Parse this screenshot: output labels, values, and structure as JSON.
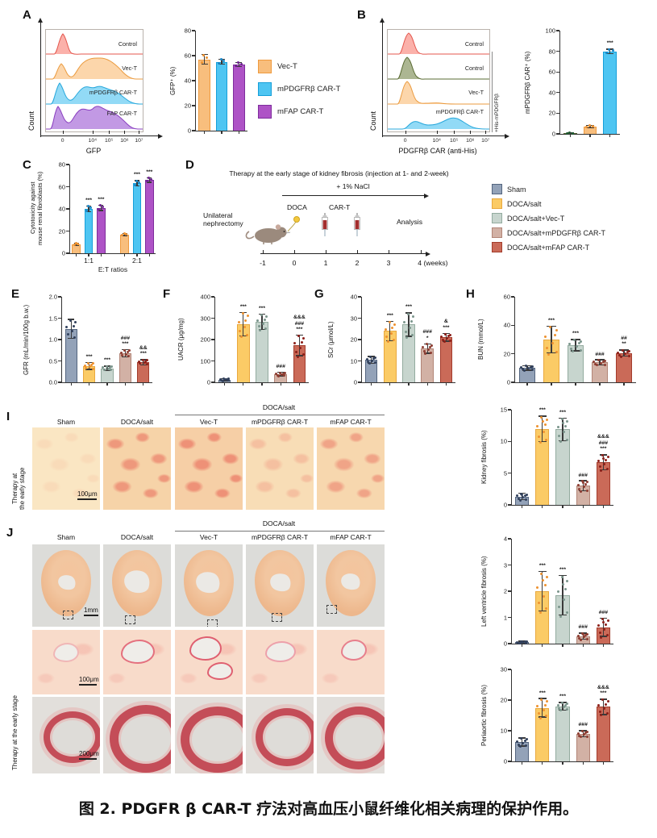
{
  "caption": "图 2. PDGFR β CAR-T 疗法对高血压小鼠纤维化相关病理的保护作用。",
  "palette": {
    "sham": {
      "fill": "#93a2b8",
      "edge": "#54657f",
      "dot": "#31405c"
    },
    "doca": {
      "fill": "#fbcb66",
      "edge": "#e9a83e",
      "dot": "#ee9230"
    },
    "vect": {
      "fill": "#c7d5ce",
      "edge": "#93ab9f",
      "dot": "#7b958c"
    },
    "pdgfrb": {
      "fill": "#d2b1a5",
      "edge": "#b28577",
      "dot": "#8e3d32"
    },
    "fap": {
      "fill": "#ca6a58",
      "edge": "#a33c2c",
      "dot": "#8c1f19"
    },
    "orange": {
      "fill": "#f8be7d",
      "edge": "#ef9a3e",
      "dot": "#ee9230"
    },
    "blue": {
      "fill": "#4ec5f2",
      "edge": "#169fd9",
      "dot": "#1787c9"
    },
    "purple": {
      "fill": "#ae53c6",
      "edge": "#7e2d9c",
      "dot": "#6d2391"
    },
    "green": {
      "fill": "#76864c",
      "edge": "#4e5f2c",
      "dot": "#1e5c30"
    }
  },
  "flow_colors": {
    "red": "#f87d72",
    "orange": "#fac07e",
    "blue": "#57c6f1",
    "purple": "#a263d6",
    "green": "#75854a"
  },
  "panels": {
    "A": {
      "label": "A",
      "flow": {
        "ylabel": "Count",
        "xlabel": "GFP",
        "xticks": [
          "0",
          "10⁴",
          "10⁵",
          "10⁶",
          "10⁷"
        ],
        "ridges": [
          "Control",
          "Vec-T",
          "mPDGFRβ CAR-T",
          "FAP CAR-T"
        ]
      },
      "legend": [
        {
          "label": "Vec-T",
          "key": "orange"
        },
        {
          "label": "mPDGFRβ CAR-T",
          "key": "blue"
        },
        {
          "label": "mFAP CAR-T",
          "key": "purple"
        }
      ]
    },
    "B": {
      "label": "B",
      "flow": {
        "ylabel": "Count",
        "xlabel": "PDGFRβ CAR (anti-His)",
        "xticks": [
          "0",
          "10⁴",
          "10⁵",
          "10⁶",
          "10⁷"
        ],
        "ridges": [
          "Control",
          "Control",
          "Vec-T",
          "mPDGFRβ CAR-T"
        ],
        "side_label": "+His-mPDGFRβ"
      }
    },
    "C": {
      "label": "C"
    },
    "D": {
      "label": "D",
      "title": "Therapy at the early stage of kidney fibrosis (injection at 1- and 2-week)",
      "nacl": "+ 1% NaCl",
      "doca": "DOCA",
      "cart": "CAR-T",
      "analysis": "Analysis",
      "surgery": "Unilateral\nnephrectomy",
      "weeks": [
        "-1",
        "0",
        "1",
        "2",
        "3",
        "4 (weeks)"
      ],
      "legend": [
        {
          "label": "Sham",
          "key": "sham"
        },
        {
          "label": "DOCA/salt",
          "key": "doca"
        },
        {
          "label": "DOCA/salt+Vec-T",
          "key": "vect"
        },
        {
          "label": "DOCA/salt+mPDGFRβ CAR-T",
          "key": "pdgfrb"
        },
        {
          "label": "DOCA/salt+mFAP CAR-T",
          "key": "fap"
        }
      ]
    },
    "E": {
      "label": "E"
    },
    "F": {
      "label": "F"
    },
    "G": {
      "label": "G"
    },
    "H": {
      "label": "H"
    },
    "I": {
      "label": "I",
      "group_header": "DOCA/salt",
      "columns": [
        "Sham",
        "DOCA/salt",
        "Vec-T",
        "mPDGFRβ CAR-T",
        "mFAP CAR-T"
      ],
      "side_label": "Therapy at\nthe early stage",
      "scale_bar": "100μm"
    },
    "J": {
      "label": "J",
      "group_header": "DOCA/salt",
      "columns": [
        "Sham",
        "DOCA/salt",
        "Vec-T",
        "mPDGFRβ CAR-T",
        "mFAP CAR-T"
      ],
      "side_label": "Therapy at the early stage",
      "scale_bars": [
        "1mm",
        "100μm",
        "200μm"
      ]
    }
  },
  "chart_data": [
    {
      "id": "gfp_positive",
      "type": "bar",
      "ylabel": "GFP⁺ (%)",
      "ylim": [
        0,
        80
      ],
      "yticks": [
        "0",
        "20",
        "40",
        "60",
        "80"
      ],
      "categories": [
        "Vec-T",
        "mPDGFRβ CAR-T",
        "mFAP CAR-T"
      ],
      "n_dots": 3,
      "bars": [
        {
          "key": "orange",
          "v": 57,
          "err": 4,
          "sig": []
        },
        {
          "key": "blue",
          "v": 55,
          "err": 2,
          "sig": []
        },
        {
          "key": "purple",
          "v": 53,
          "err": 1.5,
          "sig": []
        }
      ]
    },
    {
      "id": "car_positive",
      "type": "bar",
      "ylabel": "mPDGFRβ CAR⁺ (%)",
      "ylim": [
        0,
        100
      ],
      "yticks": [
        "0",
        "20",
        "40",
        "60",
        "80",
        "100"
      ],
      "categories": [
        "Control",
        "Vec-T",
        "mPDGFRβ CAR-T"
      ],
      "n_dots": 3,
      "bars": [
        {
          "key": "green",
          "v": 0.5,
          "err": 0.4,
          "sig": []
        },
        {
          "key": "orange",
          "v": 7,
          "err": 1,
          "sig": []
        },
        {
          "key": "blue",
          "v": 80,
          "err": 2,
          "sig": [
            "***"
          ]
        }
      ]
    },
    {
      "id": "cytotoxicity",
      "type": "bar",
      "ylabel": "Cytotoxicity against\nmouse renal fibroblasts (%)",
      "ylim": [
        0,
        80
      ],
      "yticks": [
        "0",
        "20",
        "40",
        "60",
        "80"
      ],
      "xlabel": "E:T ratios",
      "group_labels": [
        "1:1",
        "2:1"
      ],
      "gap_before": [
        3
      ],
      "n_dots": 3,
      "categories": [
        "Vec-T 1:1",
        "mPDGFRβ CAR-T 1:1",
        "mFAP CAR-T 1:1",
        "Vec-T 2:1",
        "mPDGFRβ CAR-T 2:1",
        "mFAP CAR-T 2:1"
      ],
      "bars": [
        {
          "key": "orange",
          "v": 8,
          "err": 1,
          "sig": []
        },
        {
          "key": "blue",
          "v": 40,
          "err": 2.5,
          "sig": [
            "***"
          ]
        },
        {
          "key": "purple",
          "v": 41,
          "err": 2.5,
          "sig": [
            "***"
          ]
        },
        {
          "key": "orange",
          "v": 17,
          "err": 1,
          "sig": []
        },
        {
          "key": "blue",
          "v": 63,
          "err": 2.5,
          "sig": [
            "***"
          ]
        },
        {
          "key": "purple",
          "v": 66,
          "err": 2,
          "sig": [
            "***"
          ]
        }
      ]
    },
    {
      "id": "gfr",
      "type": "bar",
      "ylabel": "GFR (mL/min/100g b.w.)",
      "ylim": [
        0,
        2
      ],
      "yticks": [
        "0.0",
        "0.5",
        "1.0",
        "1.5",
        "2.0"
      ],
      "categories": [
        "Sham",
        "DOCA/salt",
        "DOCA/salt+Vec-T",
        "DOCA/salt+mPDGFRβ CAR-T",
        "DOCA/salt+mFAP CAR-T"
      ],
      "n_dots": 7,
      "bars": [
        {
          "key": "sham",
          "v": 1.25,
          "err": 0.22,
          "sig": []
        },
        {
          "key": "doca",
          "v": 0.38,
          "err": 0.08,
          "sig": [
            "***"
          ]
        },
        {
          "key": "vect",
          "v": 0.33,
          "err": 0.05,
          "sig": [
            "***"
          ]
        },
        {
          "key": "pdgfrb",
          "v": 0.68,
          "err": 0.08,
          "sig": [
            "###",
            "***"
          ]
        },
        {
          "key": "fap",
          "v": 0.47,
          "err": 0.06,
          "sig": [
            "&&",
            "***"
          ]
        }
      ]
    },
    {
      "id": "uacr",
      "type": "bar",
      "ylabel": "UACR (μg/mg)",
      "ylim": [
        0,
        400
      ],
      "yticks": [
        "0",
        "100",
        "200",
        "300",
        "400"
      ],
      "categories": [
        "Sham",
        "DOCA/salt",
        "DOCA/salt+Vec-T",
        "DOCA/salt+mPDGFRβ CAR-T",
        "DOCA/salt+mFAP CAR-T"
      ],
      "n_dots": 8,
      "bars": [
        {
          "key": "sham",
          "v": 13,
          "err": 5,
          "sig": []
        },
        {
          "key": "doca",
          "v": 272,
          "err": 55,
          "sig": [
            "***"
          ]
        },
        {
          "key": "vect",
          "v": 283,
          "err": 35,
          "sig": [
            "***"
          ]
        },
        {
          "key": "pdgfrb",
          "v": 38,
          "err": 8,
          "sig": [
            "###"
          ]
        },
        {
          "key": "fap",
          "v": 172,
          "err": 48,
          "sig": [
            "&&&",
            "###",
            "***"
          ]
        }
      ]
    },
    {
      "id": "scr",
      "type": "bar",
      "ylabel": "SCr (μmol/L)",
      "ylim": [
        0,
        40
      ],
      "yticks": [
        "0",
        "10",
        "20",
        "30",
        "40"
      ],
      "categories": [
        "Sham",
        "DOCA/salt",
        "DOCA/salt+Vec-T",
        "DOCA/salt+mPDGFRβ CAR-T",
        "DOCA/salt+mFAP CAR-T"
      ],
      "n_dots": 8,
      "bars": [
        {
          "key": "sham",
          "v": 10.5,
          "err": 1.6,
          "sig": []
        },
        {
          "key": "doca",
          "v": 24,
          "err": 4.5,
          "sig": [
            "***"
          ]
        },
        {
          "key": "vect",
          "v": 27,
          "err": 5.5,
          "sig": [
            "***"
          ]
        },
        {
          "key": "pdgfrb",
          "v": 15.8,
          "err": 2.2,
          "sig": [
            "###",
            "*"
          ]
        },
        {
          "key": "fap",
          "v": 21,
          "err": 1.8,
          "sig": [
            "&",
            "***"
          ]
        }
      ]
    },
    {
      "id": "bun",
      "type": "bar",
      "ylabel": "BUN (mmol/L)",
      "ylim": [
        0,
        60
      ],
      "yticks": [
        "0",
        "20",
        "40",
        "60"
      ],
      "categories": [
        "Sham",
        "DOCA/salt",
        "DOCA/salt+Vec-T",
        "DOCA/salt+mPDGFRβ CAR-T",
        "DOCA/salt+mFAP CAR-T"
      ],
      "n_dots": 8,
      "bars": [
        {
          "key": "sham",
          "v": 10,
          "err": 1.5,
          "sig": []
        },
        {
          "key": "doca",
          "v": 30,
          "err": 9.5,
          "sig": [
            "***"
          ]
        },
        {
          "key": "vect",
          "v": 26,
          "err": 4,
          "sig": [
            "***"
          ]
        },
        {
          "key": "pdgfrb",
          "v": 14,
          "err": 1.8,
          "sig": [
            "###"
          ]
        },
        {
          "key": "fap",
          "v": 20.5,
          "err": 2.2,
          "sig": [
            "##",
            "**"
          ]
        }
      ]
    },
    {
      "id": "kidney_fibrosis",
      "type": "bar",
      "ylabel": "Kidney fibrosis (%)",
      "ylim": [
        0,
        15
      ],
      "yticks": [
        "0",
        "5",
        "10",
        "15"
      ],
      "categories": [
        "Sham",
        "DOCA/salt",
        "DOCA/salt+Vec-T",
        "DOCA/salt+mPDGFRβ CAR-T",
        "DOCA/salt+mFAP CAR-T"
      ],
      "n_dots": 9,
      "bars": [
        {
          "key": "sham",
          "v": 1.3,
          "err": 0.5,
          "sig": []
        },
        {
          "key": "doca",
          "v": 12,
          "err": 2,
          "sig": [
            "***"
          ]
        },
        {
          "key": "vect",
          "v": 11.9,
          "err": 1.8,
          "sig": [
            "***"
          ]
        },
        {
          "key": "pdgfrb",
          "v": 3,
          "err": 0.8,
          "sig": [
            "###"
          ]
        },
        {
          "key": "fap",
          "v": 6.7,
          "err": 1.2,
          "sig": [
            "&&&",
            "###",
            "***"
          ]
        }
      ]
    },
    {
      "id": "lv_fibrosis",
      "type": "bar",
      "ylabel": "Left ventricle fibrosis (%)",
      "ylim": [
        0,
        4
      ],
      "yticks": [
        "0",
        "1",
        "2",
        "3",
        "4"
      ],
      "categories": [
        "Sham",
        "DOCA/salt",
        "DOCA/salt+Vec-T",
        "DOCA/salt+mPDGFRβ CAR-T",
        "DOCA/salt+mFAP CAR-T"
      ],
      "n_dots": 9,
      "bars": [
        {
          "key": "sham",
          "v": 0.05,
          "err": 0.04,
          "sig": []
        },
        {
          "key": "doca",
          "v": 2.0,
          "err": 0.75,
          "sig": [
            "***"
          ]
        },
        {
          "key": "vect",
          "v": 1.85,
          "err": 0.75,
          "sig": [
            "***"
          ]
        },
        {
          "key": "pdgfrb",
          "v": 0.28,
          "err": 0.12,
          "sig": [
            "###"
          ]
        },
        {
          "key": "fap",
          "v": 0.63,
          "err": 0.35,
          "sig": [
            "###"
          ]
        }
      ]
    },
    {
      "id": "periaortic_fibrosis",
      "type": "bar",
      "ylabel": "Periaortic fibrosis (%)",
      "ylim": [
        0,
        30
      ],
      "yticks": [
        "0",
        "10",
        "20",
        "30"
      ],
      "categories": [
        "Sham",
        "DOCA/salt",
        "DOCA/salt+Vec-T",
        "DOCA/salt+mPDGFRβ CAR-T",
        "DOCA/salt+mFAP CAR-T"
      ],
      "n_dots": 8,
      "bars": [
        {
          "key": "sham",
          "v": 6.3,
          "err": 1.3,
          "sig": []
        },
        {
          "key": "doca",
          "v": 17.5,
          "err": 3,
          "sig": [
            "***"
          ]
        },
        {
          "key": "vect",
          "v": 18,
          "err": 1.2,
          "sig": [
            "***"
          ]
        },
        {
          "key": "pdgfrb",
          "v": 9,
          "err": 1,
          "sig": [
            "###"
          ]
        },
        {
          "key": "fap",
          "v": 17.8,
          "err": 2.5,
          "sig": [
            "&&&",
            "***"
          ]
        }
      ]
    }
  ]
}
